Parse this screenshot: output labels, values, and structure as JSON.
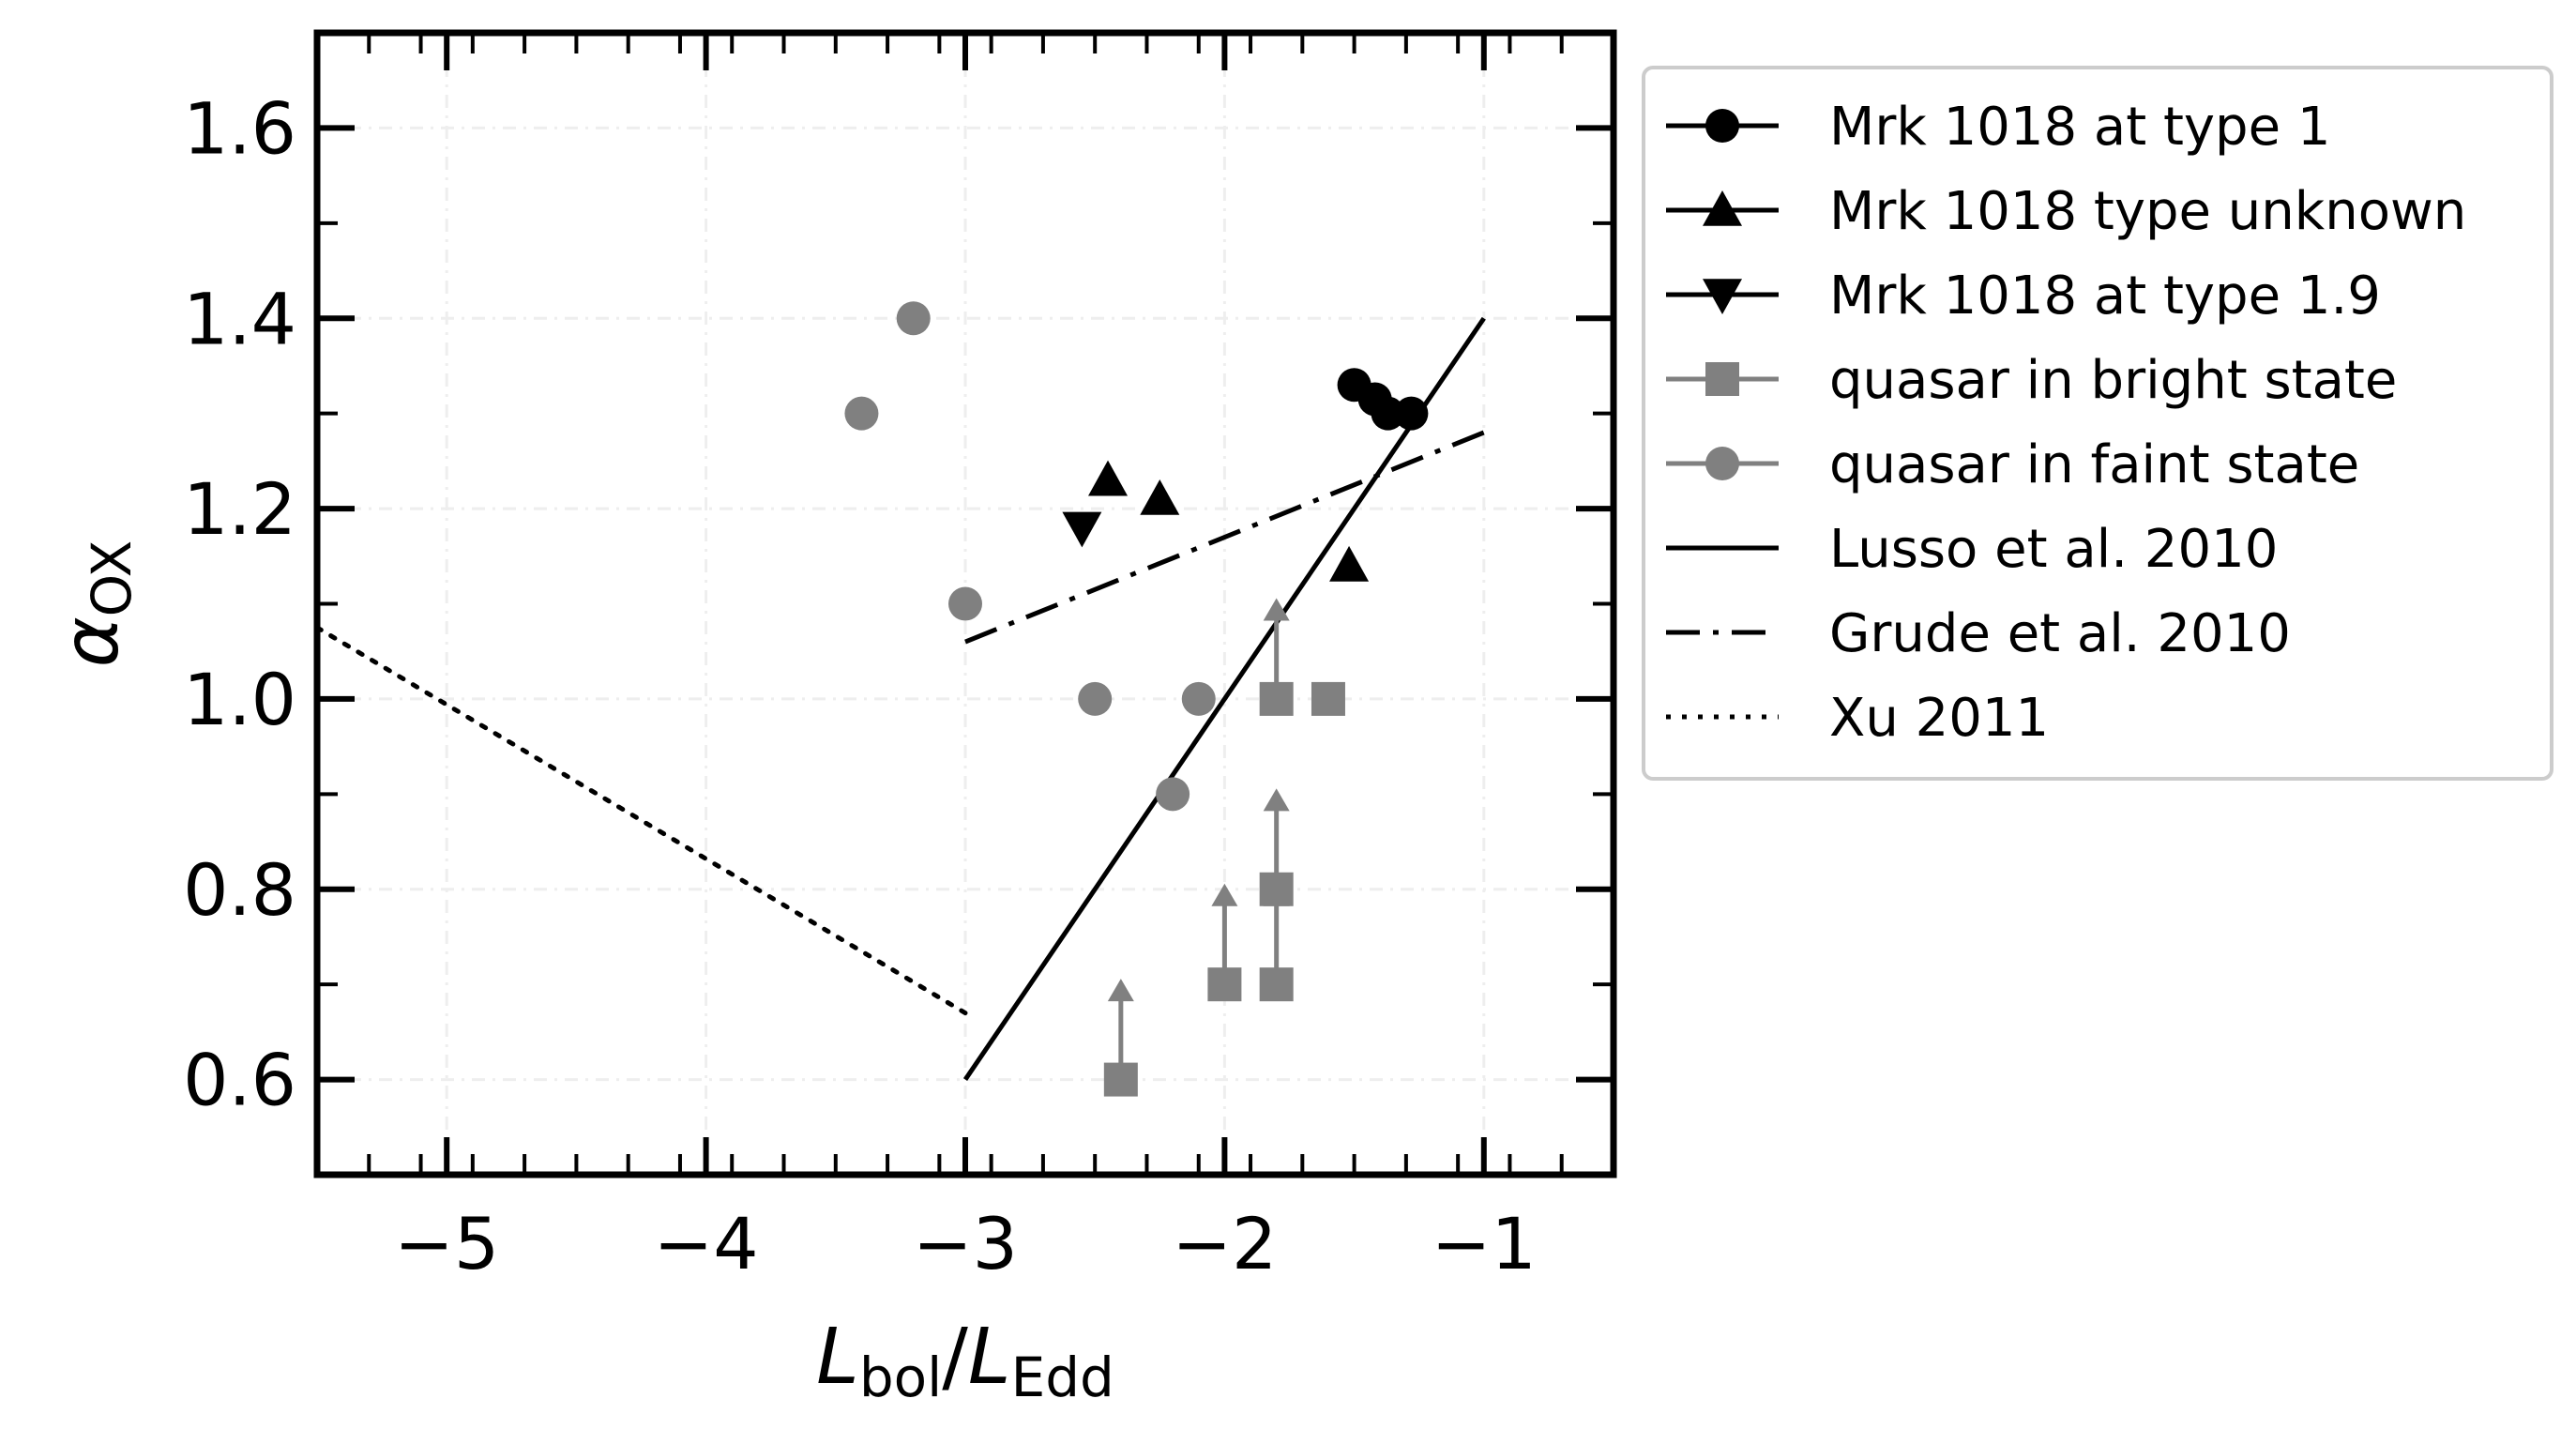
{
  "chart_data": {
    "type": "scatter",
    "xlabel": {
      "main": "L",
      "sub_num": "bol",
      "sep": "/",
      "main2": "L",
      "sub_den": "Edd"
    },
    "ylabel": {
      "main": "α",
      "sub": "OX"
    },
    "xlim": [
      -5.5,
      -0.5
    ],
    "ylim": [
      0.5,
      1.7
    ],
    "xticks": [
      -5,
      -4,
      -3,
      -2,
      -1
    ],
    "xtick_labels": [
      "−5",
      "−4",
      "−3",
      "−2",
      "−1"
    ],
    "yticks": [
      0.6,
      0.8,
      1.0,
      1.2,
      1.4,
      1.6
    ],
    "ytick_labels": [
      "0.6",
      "0.8",
      "1.0",
      "1.2",
      "1.4",
      "1.6"
    ],
    "grid": true,
    "legend_position": "outside-right",
    "colors": {
      "black": "#000000",
      "gray": "#808080"
    },
    "series": [
      {
        "name": "Mrk 1018 at type 1",
        "kind": "points",
        "marker": "circle",
        "color": "#000000",
        "x": [
          -1.5,
          -1.42,
          -1.37,
          -1.28
        ],
        "y": [
          1.33,
          1.315,
          1.3,
          1.3
        ]
      },
      {
        "name": "Mrk 1018 type unknown",
        "kind": "points",
        "marker": "triangle-up",
        "color": "#000000",
        "x": [
          -2.45,
          -2.25,
          -1.52
        ],
        "y": [
          1.23,
          1.21,
          1.14
        ]
      },
      {
        "name": "Mrk 1018 at type 1.9",
        "kind": "points",
        "marker": "triangle-down",
        "color": "#000000",
        "x": [
          -2.55
        ],
        "y": [
          1.18
        ]
      },
      {
        "name": "quasar in bright state",
        "kind": "points",
        "marker": "square",
        "color": "#808080",
        "x": [
          -1.8,
          -1.6,
          -1.8,
          -2.0,
          -1.8,
          -2.4
        ],
        "y": [
          1.0,
          1.0,
          0.8,
          0.7,
          0.7,
          0.6
        ],
        "lower_limit": [
          true,
          false,
          true,
          true,
          true,
          true
        ]
      },
      {
        "name": "quasar in faint state",
        "kind": "points",
        "marker": "circle",
        "color": "#808080",
        "x": [
          -3.4,
          -3.2,
          -3.0,
          -2.5,
          -2.1,
          -2.2
        ],
        "y": [
          1.3,
          1.4,
          1.1,
          1.0,
          1.0,
          0.9
        ]
      },
      {
        "name": "Lusso et al. 2010",
        "kind": "line",
        "style": "solid",
        "color": "#000000",
        "x": [
          -3.0,
          -1.0
        ],
        "y": [
          0.6,
          1.4
        ]
      },
      {
        "name": "Grude et al. 2010",
        "kind": "line",
        "style": "dashdot",
        "color": "#000000",
        "x": [
          -3.0,
          -1.0
        ],
        "y": [
          1.06,
          1.28
        ]
      },
      {
        "name": "Xu 2011",
        "kind": "line",
        "style": "dotted",
        "color": "#000000",
        "x": [
          -5.5,
          -3.0
        ],
        "y": [
          1.075,
          0.67
        ]
      }
    ]
  }
}
